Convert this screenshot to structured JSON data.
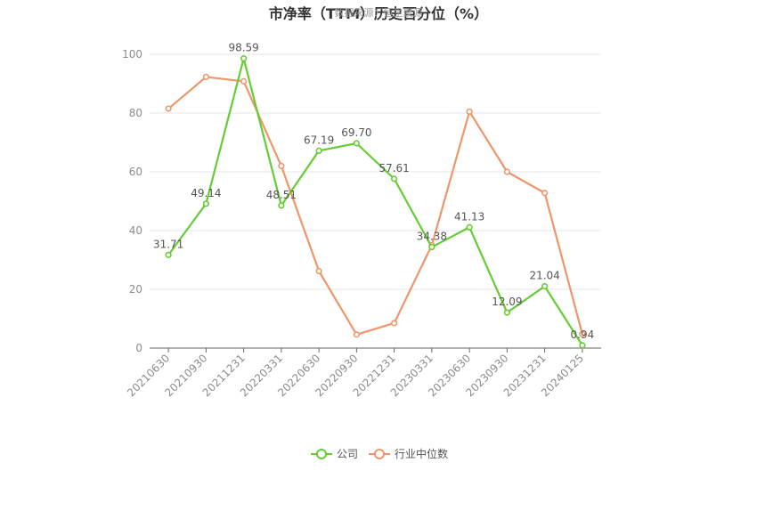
{
  "title": "市净率（TTM）历史百分位（%）",
  "source": "数据来源：恒生聚源",
  "chart_data": {
    "type": "line",
    "categories": [
      "20210630",
      "20210930",
      "20211231",
      "20220331",
      "20220630",
      "20220930",
      "20221231",
      "20230331",
      "20230630",
      "20230930",
      "20231231",
      "20240125"
    ],
    "ylim": [
      0,
      100
    ],
    "yticks": [
      0,
      20,
      40,
      60,
      80,
      100
    ],
    "grid": true,
    "legend_position": "bottom",
    "series": [
      {
        "name": "公司",
        "color": "#66cc33",
        "values": [
          31.71,
          49.14,
          98.59,
          48.51,
          67.19,
          69.7,
          57.61,
          34.38,
          41.13,
          12.09,
          21.04,
          0.94
        ],
        "labels": [
          "31.71",
          "49.14",
          "98.59",
          "48.51",
          "67.19",
          "69.70",
          "57.61",
          "34.38",
          "41.13",
          "12.09",
          "21.04",
          "0.94"
        ]
      },
      {
        "name": "行业中位数",
        "color": "#f0956a",
        "values": [
          81.5,
          92.3,
          90.8,
          62.0,
          26.2,
          4.6,
          8.5,
          35.0,
          80.5,
          60.0,
          52.8,
          4.8
        ]
      }
    ]
  }
}
